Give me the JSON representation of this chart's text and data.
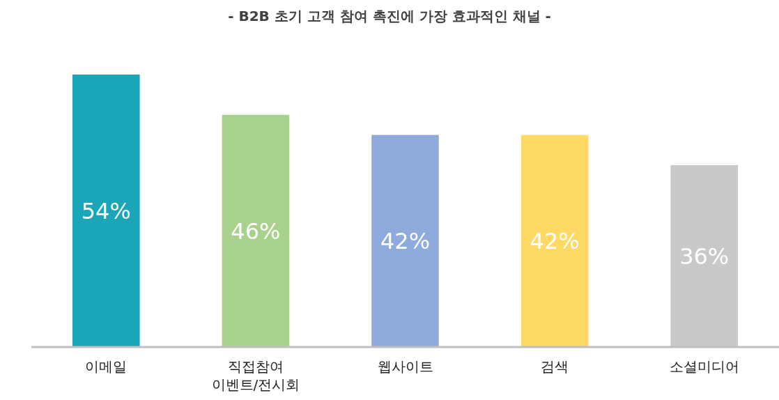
{
  "chart_data": {
    "type": "bar",
    "title": "- B2B  초기 고객 참여 촉진에 가장 효과적인 채널 -",
    "categories": [
      "이메일",
      "직접참여 이벤트/전시회",
      "웹사이트",
      "검색",
      "소셜미디어"
    ],
    "values": [
      54,
      46,
      42,
      42,
      36
    ],
    "value_labels": [
      "54%",
      "46%",
      "42%",
      "42%",
      "36%"
    ],
    "colors": [
      "#1aa5b8",
      "#a9d18e",
      "#8faadc",
      "#ffd966",
      "#c9c9c9"
    ]
  }
}
